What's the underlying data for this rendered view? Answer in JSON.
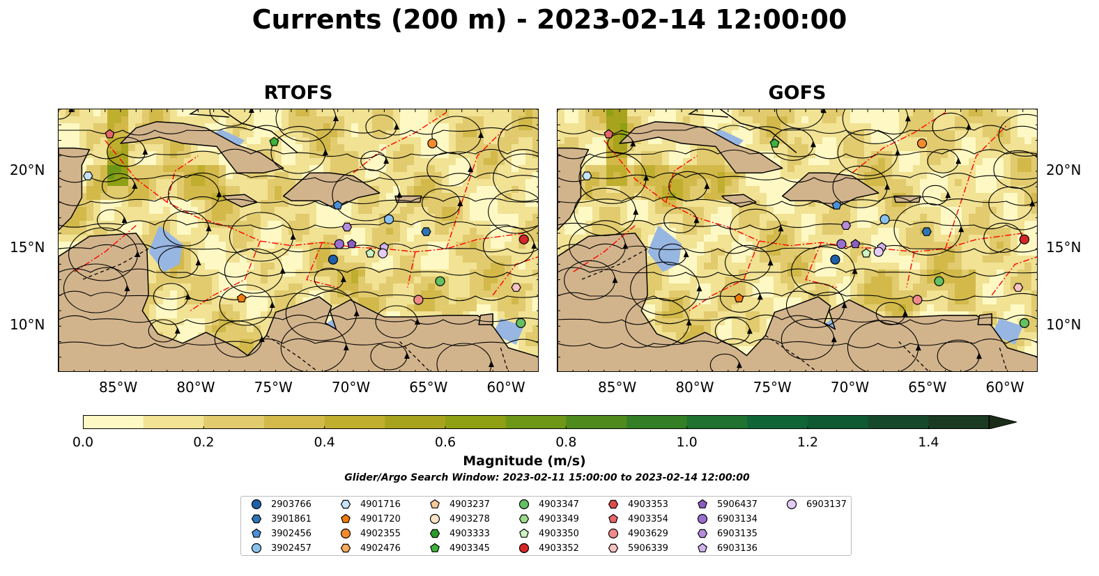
{
  "title": "Currents (200 m) - 2023-02-14 12:00:00",
  "panels": [
    {
      "id": "rtofs",
      "title": "RTOFS"
    },
    {
      "id": "gofs",
      "title": "GOFS"
    }
  ],
  "map_extent": {
    "lon": [
      -89,
      -58
    ],
    "lat": [
      7,
      24
    ]
  },
  "lon_ticks": [
    "85°W",
    "80°W",
    "75°W",
    "70°W",
    "65°W",
    "60°W"
  ],
  "lon_tick_values": [
    -85,
    -80,
    -75,
    -70,
    -65,
    -60
  ],
  "lat_ticks": [
    "20°N",
    "15°N",
    "10°N"
  ],
  "lat_tick_values": [
    20,
    15,
    10
  ],
  "colors": {
    "ocean": "#97b6e1",
    "land": "#d2b48c",
    "eez": "#ff0000"
  },
  "colorbar": {
    "title": "Magnitude (m/s)",
    "ticks": [
      "0.0",
      "0.2",
      "0.4",
      "0.6",
      "0.8",
      "1.0",
      "1.2",
      "1.4"
    ],
    "tick_values": [
      0.0,
      0.2,
      0.4,
      0.6,
      0.8,
      1.0,
      1.2,
      1.4
    ],
    "range": [
      0,
      1.5
    ],
    "extend": "max",
    "cmap_colors": [
      "#fef9c4",
      "#f1e294",
      "#e1cb6e",
      "#d2b94a",
      "#c0ae2f",
      "#a8a31d",
      "#8fa014",
      "#6f9717",
      "#4f8a1e",
      "#347f25",
      "#1f7230",
      "#106537",
      "#105a33",
      "#16492b",
      "#1a3a22",
      "#1b2d1a"
    ]
  },
  "search_window": "Glider/Argo Search Window: 2023-02-11 15:00:00 to 2023-02-14 12:00:00",
  "legend": [
    {
      "label": "2903766",
      "marker": "circle",
      "color": "#1f5fa8"
    },
    {
      "label": "3901861",
      "marker": "hexagon",
      "color": "#2f75b5"
    },
    {
      "label": "3902456",
      "marker": "pentagon",
      "color": "#4a90d9"
    },
    {
      "label": "3902457",
      "marker": "circle",
      "color": "#89c2ef"
    },
    {
      "label": "4901716",
      "marker": "hexagon",
      "color": "#c6e3fa"
    },
    {
      "label": "4901720",
      "marker": "pentagon",
      "color": "#f27b0c"
    },
    {
      "label": "4902355",
      "marker": "circle",
      "color": "#f28a2e"
    },
    {
      "label": "4902476",
      "marker": "hexagon",
      "color": "#f7ab5c"
    },
    {
      "label": "4903237",
      "marker": "pentagon",
      "color": "#f9c99a"
    },
    {
      "label": "4903278",
      "marker": "circle",
      "color": "#fde2c6"
    },
    {
      "label": "4903333",
      "marker": "hexagon",
      "color": "#2a9a2a"
    },
    {
      "label": "4903345",
      "marker": "pentagon",
      "color": "#3db23d"
    },
    {
      "label": "4903347",
      "marker": "circle",
      "color": "#63c163"
    },
    {
      "label": "4903349",
      "marker": "hexagon",
      "color": "#9ddc8f"
    },
    {
      "label": "4903350",
      "marker": "pentagon",
      "color": "#cdf3c3"
    },
    {
      "label": "4903352",
      "marker": "circle",
      "color": "#d62728"
    },
    {
      "label": "4903353",
      "marker": "hexagon",
      "color": "#dd4b4b"
    },
    {
      "label": "4903354",
      "marker": "pentagon",
      "color": "#e6676b"
    },
    {
      "label": "4903629",
      "marker": "circle",
      "color": "#f08a8a"
    },
    {
      "label": "5906339",
      "marker": "hexagon",
      "color": "#f7c2c2"
    },
    {
      "label": "5906437",
      "marker": "pentagon",
      "color": "#8a5fc0"
    },
    {
      "label": "6903134",
      "marker": "circle",
      "color": "#9a6fcf"
    },
    {
      "label": "6903135",
      "marker": "hexagon",
      "color": "#b58ddc"
    },
    {
      "label": "6903136",
      "marker": "pentagon",
      "color": "#d0b4ec"
    },
    {
      "label": "6903137",
      "marker": "circle",
      "color": "#e3cdf6"
    }
  ],
  "floats_rtofs": [
    {
      "label": "2903766",
      "lon": -71.3,
      "lat": 14.3
    },
    {
      "label": "3901861",
      "lon": -65.3,
      "lat": 16.1
    },
    {
      "label": "3902456",
      "lon": -71.0,
      "lat": 17.8
    },
    {
      "label": "3902457",
      "lon": -67.7,
      "lat": 16.9
    },
    {
      "label": "4901716",
      "lon": -87.1,
      "lat": 19.7
    },
    {
      "label": "4901720",
      "lon": -77.2,
      "lat": 11.8
    },
    {
      "label": "4902355",
      "lon": -64.9,
      "lat": 21.8
    },
    {
      "label": "4903345",
      "lon": -75.1,
      "lat": 21.9
    },
    {
      "label": "4903347",
      "lon": -64.4,
      "lat": 12.9
    },
    {
      "label": "4903347",
      "lon": -59.2,
      "lat": 10.2
    },
    {
      "label": "4903350",
      "lon": -68.9,
      "lat": 14.7
    },
    {
      "label": "4903352",
      "lon": -59.0,
      "lat": 15.6
    },
    {
      "label": "4903354",
      "lon": -85.7,
      "lat": 22.4
    },
    {
      "label": "4903629",
      "lon": -65.8,
      "lat": 11.7
    },
    {
      "label": "5906339",
      "lon": -59.5,
      "lat": 12.5
    },
    {
      "label": "5906437",
      "lon": -70.1,
      "lat": 15.3
    },
    {
      "label": "6903134",
      "lon": -70.9,
      "lat": 15.3
    },
    {
      "label": "6903135",
      "lon": -70.4,
      "lat": 16.4
    },
    {
      "label": "6903136",
      "lon": -68.0,
      "lat": 15.1
    },
    {
      "label": "6903137",
      "lon": -68.1,
      "lat": 14.7
    }
  ],
  "floats_gofs": [
    {
      "label": "2903766",
      "lon": -71.1,
      "lat": 14.3
    },
    {
      "label": "3901861",
      "lon": -65.2,
      "lat": 16.1
    },
    {
      "label": "3902456",
      "lon": -71.0,
      "lat": 17.8
    },
    {
      "label": "3902457",
      "lon": -67.9,
      "lat": 16.9
    },
    {
      "label": "4901716",
      "lon": -87.1,
      "lat": 19.7
    },
    {
      "label": "4901720",
      "lon": -77.3,
      "lat": 11.8
    },
    {
      "label": "4902355",
      "lon": -65.5,
      "lat": 21.8
    },
    {
      "label": "4903345",
      "lon": -75.0,
      "lat": 21.8
    },
    {
      "label": "4903347",
      "lon": -64.4,
      "lat": 12.9
    },
    {
      "label": "4903347",
      "lon": -58.9,
      "lat": 10.2
    },
    {
      "label": "4903350",
      "lon": -69.1,
      "lat": 14.7
    },
    {
      "label": "4903352",
      "lon": -58.9,
      "lat": 15.6
    },
    {
      "label": "4903354",
      "lon": -85.7,
      "lat": 22.4
    },
    {
      "label": "4903629",
      "lon": -65.8,
      "lat": 11.7
    },
    {
      "label": "5906339",
      "lon": -59.3,
      "lat": 12.5
    },
    {
      "label": "5906437",
      "lon": -69.8,
      "lat": 15.3
    },
    {
      "label": "6903134",
      "lon": -70.7,
      "lat": 15.3
    },
    {
      "label": "6903135",
      "lon": -70.4,
      "lat": 16.5
    },
    {
      "label": "6903136",
      "lon": -68.1,
      "lat": 15.1
    },
    {
      "label": "6903137",
      "lon": -68.3,
      "lat": 14.8
    }
  ]
}
